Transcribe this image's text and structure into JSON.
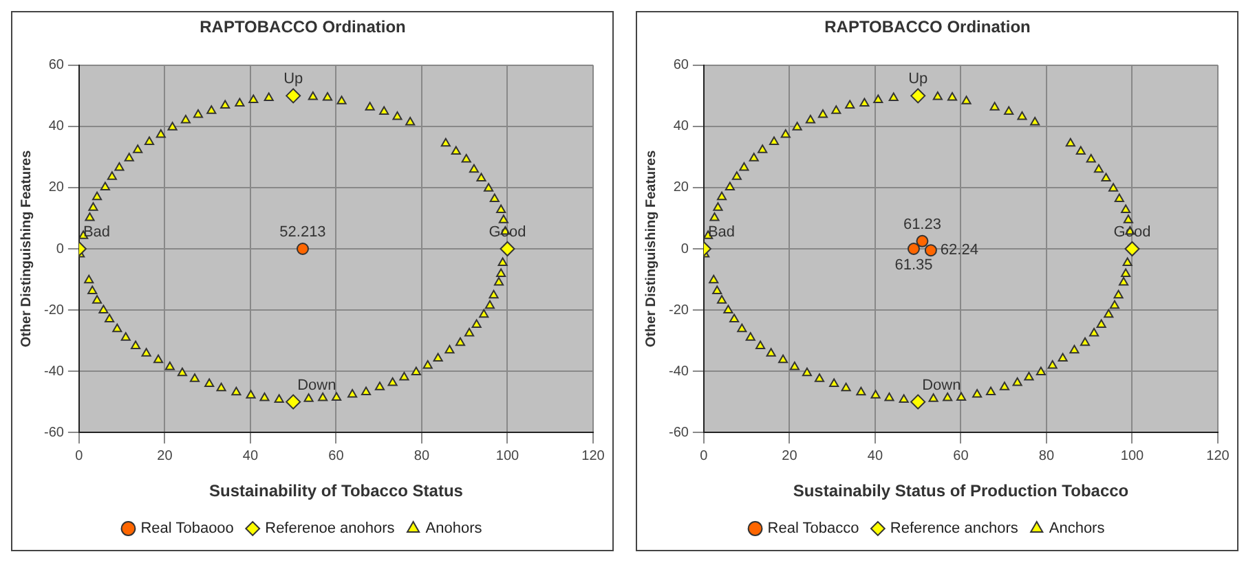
{
  "chart_data": [
    {
      "type": "scatter",
      "title": "RAPTOBACCO Ordination",
      "xlabel": "Sustainability of Tobacco Status",
      "ylabel": "Other Distinguishing Features",
      "xlim": [
        0,
        120
      ],
      "xticks": [
        0,
        20,
        40,
        60,
        80,
        100,
        120
      ],
      "ylim": [
        -60,
        60
      ],
      "yticks": [
        -60,
        -40,
        -20,
        0,
        20,
        40,
        60
      ],
      "grid": true,
      "legend": "bottom",
      "series": [
        {
          "name": "Real Tobaooo",
          "color": "#ff6600",
          "marker": "circle",
          "x": [
            52.213
          ],
          "values": [
            0
          ]
        },
        {
          "name": "Referenoe anohors",
          "color": "#ffff00",
          "marker": "diamond",
          "x": [
            0,
            100,
            50,
            50
          ],
          "values": [
            0,
            0,
            50,
            -50
          ]
        },
        {
          "name": "Anohors",
          "color": "#ffff00",
          "marker": "triangle",
          "x": [
            1,
            2.5,
            3.3,
            4.2,
            6.1,
            7.7,
            9.4,
            11.7,
            13.7,
            16.4,
            19.1,
            21.8,
            24.9,
            27.8,
            30.9,
            34.1,
            37.5,
            40.7,
            44.3,
            54.6,
            58,
            61.3,
            67.9,
            71.2,
            74.3,
            77.3,
            85.6,
            88,
            90.4,
            92.2,
            93.9,
            95.6,
            97,
            98.5,
            99.1,
            99.5,
            0.2,
            2.3,
            3.1,
            4.2,
            5.7,
            7.1,
            8.9,
            10.9,
            13.2,
            15.7,
            18.5,
            21.2,
            24.1,
            27,
            30.4,
            33.2,
            36.7,
            40.1,
            43.3,
            46.7,
            53.6,
            56.9,
            60.1,
            63.8,
            67,
            70.2,
            73.2,
            75.9,
            78.7,
            81.4,
            83.8,
            86.5,
            89,
            91.1,
            92.8,
            94.5,
            95.9,
            96.8,
            98,
            98.5,
            98.9
          ],
          "values": [
            4.2,
            10.1,
            13.4,
            16.9,
            20.1,
            23.5,
            26.5,
            29.6,
            32.3,
            34.9,
            37.3,
            39.7,
            42,
            43.8,
            45.1,
            46.8,
            47.5,
            48.6,
            49.3,
            49.6,
            49.4,
            48.2,
            46.2,
            44.8,
            43.1,
            41.3,
            34.4,
            31.8,
            29.2,
            25.9,
            23,
            19.7,
            16.3,
            12.7,
            9.4,
            5.6,
            -1.8,
            -10.3,
            -13.8,
            -16.9,
            -20.1,
            -23,
            -26.2,
            -29,
            -31.8,
            -34.2,
            -36.3,
            -38.6,
            -40.6,
            -42.5,
            -44.1,
            -45.5,
            -46.9,
            -47.9,
            -48.7,
            -49.3,
            -49,
            -48.7,
            -48.6,
            -47.6,
            -46.8,
            -45.2,
            -43.8,
            -42,
            -40.3,
            -38.2,
            -35.8,
            -33.2,
            -30.7,
            -27.6,
            -24.8,
            -21.5,
            -18.6,
            -15.2,
            -11,
            -8.2,
            -4.6
          ]
        }
      ],
      "annotations": [
        {
          "text": "Bad",
          "x": 0,
          "y": 0
        },
        {
          "text": "Good",
          "x": 100,
          "y": 0
        },
        {
          "text": "Up",
          "x": 50,
          "y": 50
        },
        {
          "text": "Down",
          "x": 50,
          "y": -50
        },
        {
          "text": "52.213",
          "x": 52.213,
          "y": 0
        }
      ]
    },
    {
      "type": "scatter",
      "title": "RAPTOBACCO Ordination",
      "xlabel": "Sustainabily Status of Production Tobacco",
      "ylabel": "Other Distinguishing Features",
      "xlim": [
        0,
        120
      ],
      "xticks": [
        0,
        20,
        40,
        60,
        80,
        100,
        120
      ],
      "ylim": [
        -60,
        60
      ],
      "yticks": [
        -60,
        -40,
        -20,
        0,
        20,
        40,
        60
      ],
      "grid": true,
      "legend": "bottom",
      "series": [
        {
          "name": "Real Tobacco",
          "color": "#ff6600",
          "marker": "circle",
          "x": [
            51,
            49,
            53
          ],
          "values": [
            2.5,
            0,
            -0.5
          ]
        },
        {
          "name": "Reference anchors",
          "color": "#ffff00",
          "marker": "diamond",
          "x": [
            0,
            100,
            50,
            50
          ],
          "values": [
            0,
            0,
            50,
            -50
          ]
        },
        {
          "name": "Anchors",
          "color": "#ffff00",
          "marker": "triangle",
          "x": [
            1,
            2.5,
            3.3,
            4.2,
            6.1,
            7.7,
            9.4,
            11.7,
            13.7,
            16.4,
            19.1,
            21.8,
            24.9,
            27.8,
            30.9,
            34.1,
            37.5,
            40.7,
            44.3,
            54.6,
            58,
            61.3,
            67.9,
            71.2,
            74.3,
            77.3,
            85.6,
            88,
            90.4,
            92.2,
            93.9,
            95.6,
            97,
            98.5,
            99.1,
            99.5,
            0.2,
            2.3,
            3.1,
            4.2,
            5.7,
            7.1,
            8.9,
            10.9,
            13.2,
            15.7,
            18.5,
            21.2,
            24.1,
            27,
            30.4,
            33.2,
            36.7,
            40.1,
            43.3,
            46.7,
            53.6,
            56.9,
            60.1,
            63.8,
            67,
            70.2,
            73.2,
            75.9,
            78.7,
            81.4,
            83.8,
            86.5,
            89,
            91.1,
            92.8,
            94.5,
            95.9,
            96.8,
            98,
            98.5,
            98.9
          ],
          "values": [
            4.2,
            10.1,
            13.4,
            16.9,
            20.1,
            23.5,
            26.5,
            29.6,
            32.3,
            34.9,
            37.3,
            39.7,
            42,
            43.8,
            45.1,
            46.8,
            47.5,
            48.6,
            49.3,
            49.6,
            49.4,
            48.2,
            46.2,
            44.8,
            43.1,
            41.3,
            34.4,
            31.8,
            29.2,
            25.9,
            23,
            19.7,
            16.3,
            12.7,
            9.4,
            5.6,
            -1.8,
            -10.3,
            -13.8,
            -16.9,
            -20.1,
            -23,
            -26.2,
            -29,
            -31.8,
            -34.2,
            -36.3,
            -38.6,
            -40.6,
            -42.5,
            -44.1,
            -45.5,
            -46.9,
            -47.9,
            -48.7,
            -49.3,
            -49,
            -48.7,
            -48.6,
            -47.6,
            -46.8,
            -45.2,
            -43.8,
            -42,
            -40.3,
            -38.2,
            -35.8,
            -33.2,
            -30.7,
            -27.6,
            -24.8,
            -21.5,
            -18.6,
            -15.2,
            -11,
            -8.2,
            -4.6
          ]
        }
      ],
      "annotations": [
        {
          "text": "Bad",
          "x": 0,
          "y": 0
        },
        {
          "text": "Good",
          "x": 100,
          "y": 0
        },
        {
          "text": "Up",
          "x": 50,
          "y": 50
        },
        {
          "text": "Down",
          "x": 50,
          "y": -50
        },
        {
          "text": "61.23",
          "x": 51,
          "y": 2.5
        },
        {
          "text": "61.35",
          "x": 49,
          "y": 0
        },
        {
          "text": "62.24",
          "x": 53,
          "y": -0.5
        }
      ]
    }
  ]
}
